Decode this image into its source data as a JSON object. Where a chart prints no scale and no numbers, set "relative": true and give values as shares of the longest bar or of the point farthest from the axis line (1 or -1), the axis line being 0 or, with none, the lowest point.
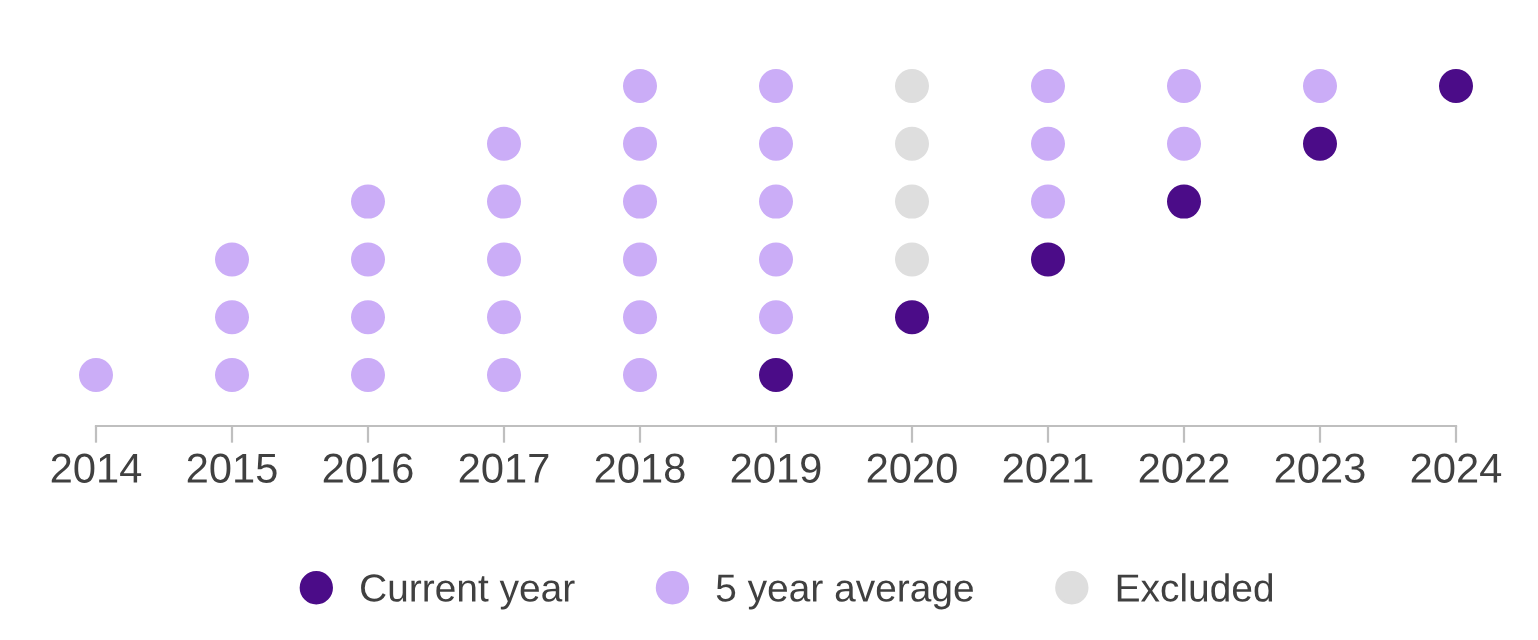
{
  "chart_data": {
    "type": "scatter",
    "relative": true,
    "marker": "circle",
    "legend": "bottom",
    "grid": false,
    "tick_labels": "x",
    "xlim": [
      2014,
      2024
    ],
    "xticks": [
      2014,
      2015,
      2016,
      2017,
      2018,
      2019,
      2020,
      2021,
      2022,
      2023,
      2024
    ],
    "series": [
      {
        "name": "Current year",
        "color": "#4b0c88",
        "x": [
          2019,
          2020,
          2021,
          2022,
          2023,
          2024
        ],
        "values": [
          0.15,
          0.32,
          0.49,
          0.66,
          0.83,
          1
        ]
      },
      {
        "name": "5 year average",
        "color": "#cbadf7",
        "x": [
          2014,
          2015,
          2015,
          2015,
          2016,
          2016,
          2016,
          2016,
          2017,
          2017,
          2017,
          2017,
          2017,
          2018,
          2018,
          2018,
          2018,
          2018,
          2018,
          2019,
          2019,
          2019,
          2019,
          2019,
          2021,
          2021,
          2021,
          2022,
          2022,
          2023
        ],
        "values": [
          0.15,
          0.15,
          0.32,
          0.49,
          0.15,
          0.32,
          0.49,
          0.66,
          0.15,
          0.32,
          0.49,
          0.66,
          0.83,
          0.15,
          0.32,
          0.49,
          0.66,
          0.83,
          1,
          0.32,
          0.49,
          0.66,
          0.83,
          1,
          0.66,
          0.83,
          1,
          0.83,
          1,
          1
        ]
      },
      {
        "name": "Excluded",
        "color": "#dedede",
        "x": [
          2020,
          2020,
          2020,
          2020
        ],
        "values": [
          0.49,
          0.66,
          0.83,
          1
        ]
      }
    ]
  }
}
